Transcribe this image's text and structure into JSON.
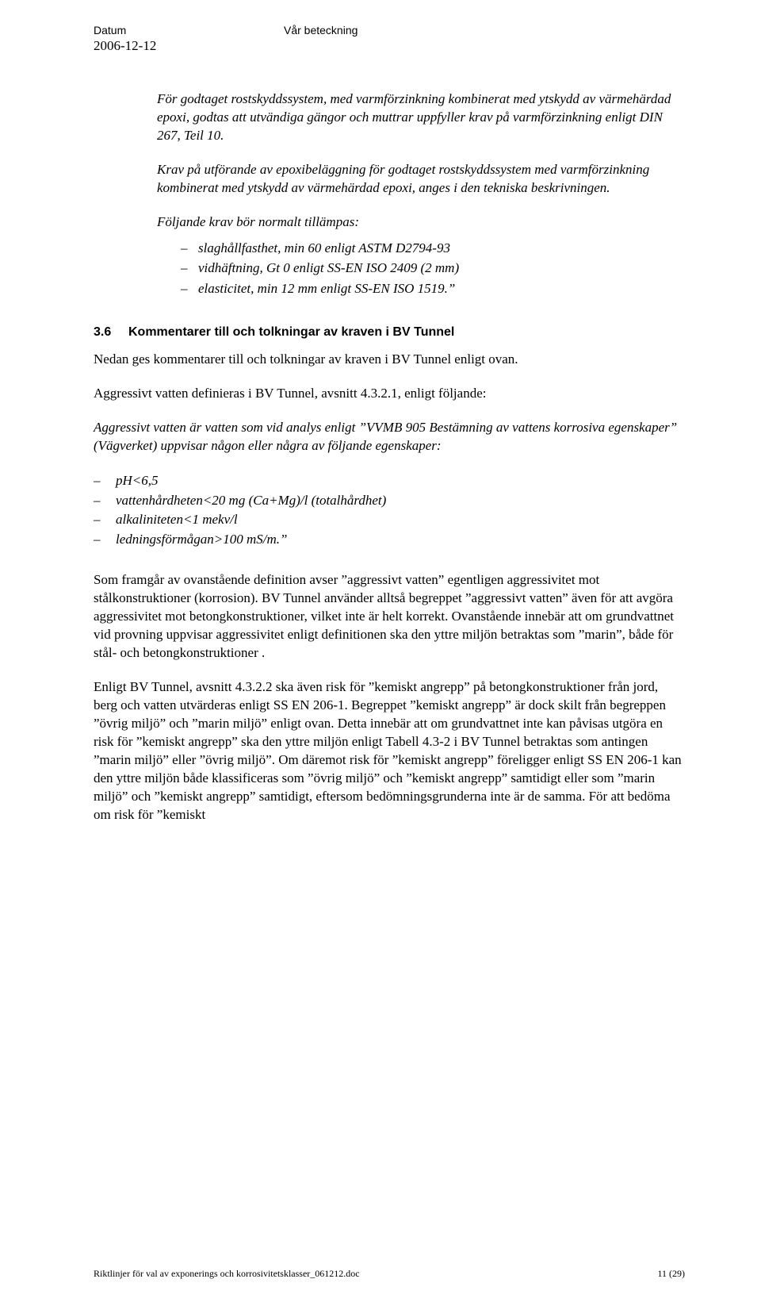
{
  "header": {
    "datum_label": "Datum",
    "beteckning_label": "Vår beteckning",
    "date": "2006-12-12"
  },
  "block1": {
    "p1": "För godtaget rostskyddssystem, med varmförzinkning kombinerat med ytskydd av värmehärdad epoxi, godtas att utvändiga gängor och muttrar uppfyller krav på varmförzinkning enligt DIN 267, Teil 10.",
    "p2": "Krav på utförande av epoxibeläggning för godtaget rostskyddssystem med varmförzinkning kombinerat med ytskydd av värmehärdad epoxi, anges i den tekniska beskrivningen.",
    "p3": "Följande krav bör normalt tillämpas:",
    "bullets": [
      "slaghållfasthet, min 60 enligt ASTM D2794-93",
      "vidhäftning, Gt 0 enligt SS-EN ISO 2409 (2 mm)",
      "elasticitet, min 12 mm enligt SS-EN ISO 1519.”"
    ]
  },
  "section36": {
    "num": "3.6",
    "title": "Kommentarer till och tolkningar av kraven i BV Tunnel",
    "p1": "Nedan ges kommentarer till och tolkningar av kraven i BV Tunnel enligt ovan.",
    "p2": "Aggressivt vatten definieras i BV Tunnel, avsnitt 4.3.2.1, enligt följande:",
    "p3": "Aggressivt vatten är vatten som vid analys enligt ”VVMB 905 Bestämning av vattens korrosiva egenskaper” (Vägverket) uppvisar någon eller några av följande egenskaper:",
    "bullets": [
      "pH<6,5",
      "vattenhårdheten<20 mg (Ca+Mg)/l (totalhårdhet)",
      "alkaliniteten<1 mekv/l",
      "ledningsförmågan>100 mS/m.”"
    ],
    "p4": "Som framgår av ovanstående definition avser ”aggressivt vatten” egentligen aggressivitet mot stålkonstruktioner (korrosion). BV Tunnel använder alltså begreppet ”aggressivt vatten” även för att avgöra aggressivitet mot betongkonstruktioner, vilket inte är helt korrekt. Ovanstående innebär att om grundvattnet vid provning uppvisar aggressivitet enligt definitionen ska den yttre miljön betraktas som ”marin”, både för stål- och betongkonstruktioner .",
    "p5": "Enligt BV Tunnel, avsnitt 4.3.2.2 ska även risk för ”kemiskt angrepp” på betongkonstruktioner från jord, berg och vatten utvärderas enligt SS EN 206-1. Begreppet ”kemiskt angrepp” är dock skilt från begreppen ”övrig miljö” och ”marin miljö” enligt ovan. Detta innebär att om grundvattnet inte kan påvisas utgöra en risk för ”kemiskt angrepp” ska den yttre miljön enligt Tabell 4.3-2 i BV Tunnel betraktas som antingen ”marin miljö” eller ”övrig miljö”. Om däremot risk för ”kemiskt angrepp” föreligger enligt SS EN 206-1 kan den yttre miljön både klassificeras som ”övrig miljö” och ”kemiskt angrepp” samtidigt eller som ”marin miljö” och ”kemiskt angrepp” samtidigt, eftersom bedömningsgrunderna inte är de samma. För att bedöma om risk för ”kemiskt"
  },
  "footer": {
    "filename": "Riktlinjer för val av exponerings och korrosivitetsklasser_061212.doc",
    "page": "11 (29)"
  }
}
